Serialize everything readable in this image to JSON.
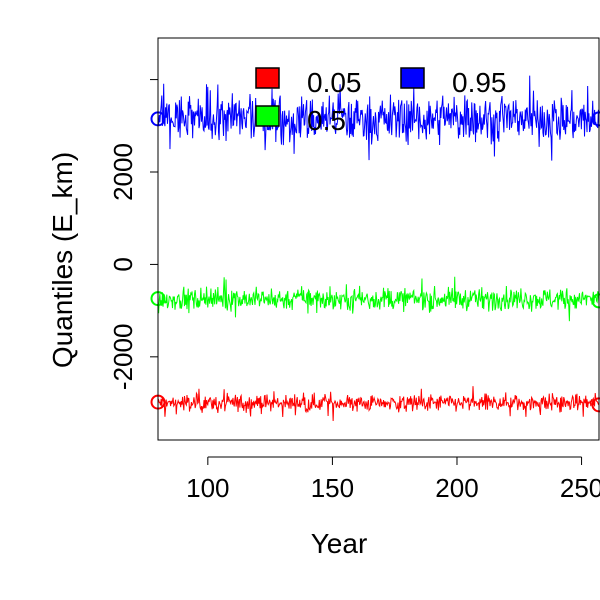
{
  "chart_data": {
    "type": "line",
    "title": "",
    "xlabel": "Year",
    "ylabel": "Quantiles (E_km)",
    "xlim": [
      80,
      257
    ],
    "ylim": [
      -3800,
      4900
    ],
    "x_ticks": [
      100,
      150,
      200,
      250
    ],
    "y_ticks": [
      -2000,
      0,
      2000
    ],
    "y_tick_labels": [
      "-2000",
      "0",
      "2000"
    ],
    "x_tick_labels": [
      "100",
      "150",
      "200",
      "250"
    ],
    "x_start": 80,
    "x_end": 257,
    "grid": false,
    "legend_position": "top-center",
    "series": [
      {
        "name": "0.05",
        "color": "#ff0000",
        "center": -3000,
        "amplitude": 330,
        "start_marker": -2980,
        "end_marker": -3040
      },
      {
        "name": "0.5",
        "color": "#00ff00",
        "center": -750,
        "amplitude": 420,
        "start_marker": -740,
        "end_marker": -790
      },
      {
        "name": "0.95",
        "color": "#0000ff",
        "center": 3150,
        "amplitude": 900,
        "start_marker": 3150,
        "end_marker": 3150
      }
    ],
    "legend": [
      {
        "label": "0.05",
        "color": "#ff0000"
      },
      {
        "label": "0.95",
        "color": "#0000ff"
      },
      {
        "label": "0.5",
        "color": "#00ff00"
      }
    ]
  }
}
